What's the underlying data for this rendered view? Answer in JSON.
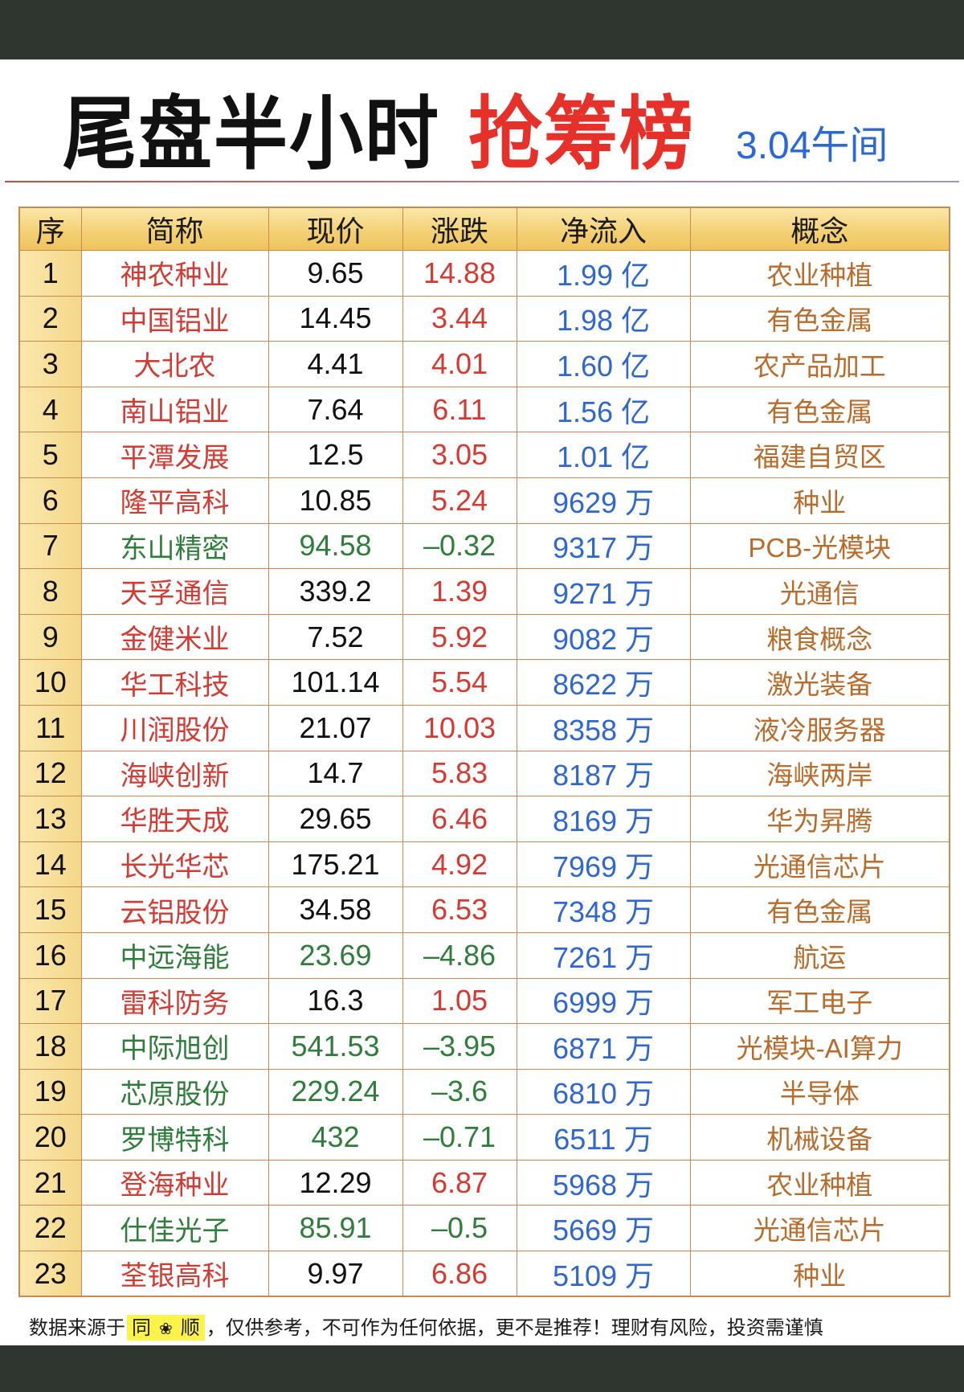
{
  "title": {
    "main": "尾盘半小时",
    "accent": "抢筹榜",
    "date_label": "3.04午间"
  },
  "colors": {
    "title_accent": "#e5312a",
    "date": "#2b68d6",
    "header_bg": "#f3cf72",
    "border": "#c98a52",
    "up": "#d33a32",
    "down": "#2e7d3a",
    "flow": "#2f67cf",
    "concept": "#b86b2a"
  },
  "table": {
    "headers": [
      "序",
      "简称",
      "现价",
      "涨跌",
      "净流入",
      "概念"
    ],
    "rows": [
      {
        "rank": "1",
        "name": "神农种业",
        "price": "9.65",
        "change": "14.88",
        "inflow": "1.99 亿",
        "concept": "农业种植",
        "trend": "up"
      },
      {
        "rank": "2",
        "name": "中国铝业",
        "price": "14.45",
        "change": "3.44",
        "inflow": "1.98 亿",
        "concept": "有色金属",
        "trend": "up"
      },
      {
        "rank": "3",
        "name": "大北农",
        "price": "4.41",
        "change": "4.01",
        "inflow": "1.60 亿",
        "concept": "农产品加工",
        "trend": "up"
      },
      {
        "rank": "4",
        "name": "南山铝业",
        "price": "7.64",
        "change": "6.11",
        "inflow": "1.56 亿",
        "concept": "有色金属",
        "trend": "up"
      },
      {
        "rank": "5",
        "name": "平潭发展",
        "price": "12.5",
        "change": "3.05",
        "inflow": "1.01 亿",
        "concept": "福建自贸区",
        "trend": "up"
      },
      {
        "rank": "6",
        "name": "隆平高科",
        "price": "10.85",
        "change": "5.24",
        "inflow": "9629 万",
        "concept": "种业",
        "trend": "up"
      },
      {
        "rank": "7",
        "name": "东山精密",
        "price": "94.58",
        "change": "-0.32",
        "inflow": "9317 万",
        "concept": "PCB-光模块",
        "trend": "down"
      },
      {
        "rank": "8",
        "name": "天孚通信",
        "price": "339.2",
        "change": "1.39",
        "inflow": "9271 万",
        "concept": "光通信",
        "trend": "up"
      },
      {
        "rank": "9",
        "name": "金健米业",
        "price": "7.52",
        "change": "5.92",
        "inflow": "9082 万",
        "concept": "粮食概念",
        "trend": "up"
      },
      {
        "rank": "10",
        "name": "华工科技",
        "price": "101.14",
        "change": "5.54",
        "inflow": "8622 万",
        "concept": "激光装备",
        "trend": "up"
      },
      {
        "rank": "11",
        "name": "川润股份",
        "price": "21.07",
        "change": "10.03",
        "inflow": "8358 万",
        "concept": "液冷服务器",
        "trend": "up"
      },
      {
        "rank": "12",
        "name": "海峡创新",
        "price": "14.7",
        "change": "5.83",
        "inflow": "8187 万",
        "concept": "海峡两岸",
        "trend": "up"
      },
      {
        "rank": "13",
        "name": "华胜天成",
        "price": "29.65",
        "change": "6.46",
        "inflow": "8169 万",
        "concept": "华为昇腾",
        "trend": "up"
      },
      {
        "rank": "14",
        "name": "长光华芯",
        "price": "175.21",
        "change": "4.92",
        "inflow": "7969 万",
        "concept": "光通信芯片",
        "trend": "up"
      },
      {
        "rank": "15",
        "name": "云铝股份",
        "price": "34.58",
        "change": "6.53",
        "inflow": "7348 万",
        "concept": "有色金属",
        "trend": "up"
      },
      {
        "rank": "16",
        "name": "中远海能",
        "price": "23.69",
        "change": "-4.86",
        "inflow": "7261 万",
        "concept": "航运",
        "trend": "down"
      },
      {
        "rank": "17",
        "name": "雷科防务",
        "price": "16.3",
        "change": "1.05",
        "inflow": "6999 万",
        "concept": "军工电子",
        "trend": "up"
      },
      {
        "rank": "18",
        "name": "中际旭创",
        "price": "541.53",
        "change": "-3.95",
        "inflow": "6871 万",
        "concept": "光模块-AI算力",
        "trend": "down"
      },
      {
        "rank": "19",
        "name": "芯原股份",
        "price": "229.24",
        "change": "-3.6",
        "inflow": "6810 万",
        "concept": "半导体",
        "trend": "down"
      },
      {
        "rank": "20",
        "name": "罗博特科",
        "price": "432",
        "change": "-0.71",
        "inflow": "6511 万",
        "concept": "机械设备",
        "trend": "down"
      },
      {
        "rank": "21",
        "name": "登海种业",
        "price": "12.29",
        "change": "6.87",
        "inflow": "5968 万",
        "concept": "农业种植",
        "trend": "up"
      },
      {
        "rank": "22",
        "name": "仕佳光子",
        "price": "85.91",
        "change": "-0.5",
        "inflow": "5669 万",
        "concept": "光通信芯片",
        "trend": "down"
      },
      {
        "rank": "23",
        "name": "荃银高科",
        "price": "9.97",
        "change": "6.86",
        "inflow": "5109 万",
        "concept": "种业",
        "trend": "up"
      }
    ]
  },
  "footer": {
    "prefix": "数据来源于",
    "brand_left": "同",
    "brand_icon": "flower-icon",
    "brand_right": "顺",
    "disclaimer": "，仅供参考，不可作为任何依据，更不是推荐！理财有风险，投资需谨慎"
  }
}
